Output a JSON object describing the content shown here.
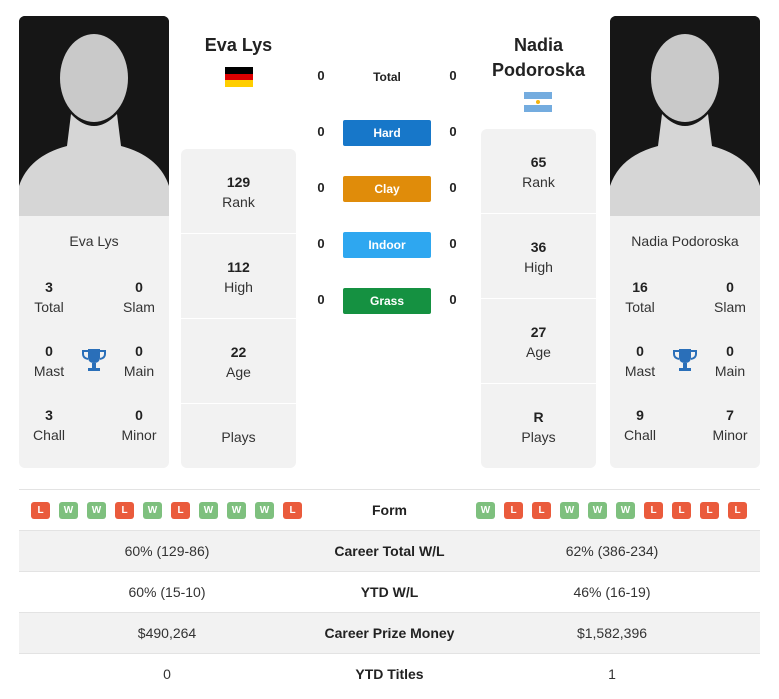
{
  "colors": {
    "hard": "#1777c9",
    "clay": "#e08c0a",
    "indoor": "#2ea7f0",
    "grass": "#159141",
    "win": "#7ec07e",
    "loss": "#ea5b3c",
    "trophy": "#2a6fb9"
  },
  "player1": {
    "name": "Eva Lys",
    "flag": "germany-flag",
    "card": {
      "name": "Eva Lys",
      "total": "3",
      "total_label": "Total",
      "slam": "0",
      "slam_label": "Slam",
      "mast": "0",
      "mast_label": "Mast",
      "main": "0",
      "main_label": "Main",
      "chall": "3",
      "chall_label": "Chall",
      "minor": "0",
      "minor_label": "Minor"
    },
    "rank": "129",
    "rank_label": "Rank",
    "high": "112",
    "high_label": "High",
    "age": "22",
    "age_label": "Age",
    "plays": "",
    "plays_label": "Plays"
  },
  "player2": {
    "name_line1": "Nadia",
    "name_line2": "Podoroska",
    "flag": "argentina-flag",
    "card": {
      "name": "Nadia Podoroska",
      "total": "16",
      "total_label": "Total",
      "slam": "0",
      "slam_label": "Slam",
      "mast": "0",
      "mast_label": "Mast",
      "main": "0",
      "main_label": "Main",
      "chall": "9",
      "chall_label": "Chall",
      "minor": "7",
      "minor_label": "Minor"
    },
    "rank": "65",
    "rank_label": "Rank",
    "high": "36",
    "high_label": "High",
    "age": "27",
    "age_label": "Age",
    "plays": "R",
    "plays_label": "Plays"
  },
  "h2h": {
    "total": {
      "label": "Total",
      "p1": "0",
      "p2": "0"
    },
    "hard": {
      "label": "Hard",
      "p1": "0",
      "p2": "0"
    },
    "clay": {
      "label": "Clay",
      "p1": "0",
      "p2": "0"
    },
    "indoor": {
      "label": "Indoor",
      "p1": "0",
      "p2": "0"
    },
    "grass": {
      "label": "Grass",
      "p1": "0",
      "p2": "0"
    }
  },
  "table": {
    "form_label": "Form",
    "p1_form": [
      "L",
      "W",
      "W",
      "L",
      "W",
      "L",
      "W",
      "W",
      "W",
      "L"
    ],
    "p2_form": [
      "W",
      "L",
      "L",
      "W",
      "W",
      "W",
      "L",
      "L",
      "L",
      "L"
    ],
    "rows": [
      {
        "label": "Career Total W/L",
        "p1": "60% (129-86)",
        "p2": "62% (386-234)"
      },
      {
        "label": "YTD W/L",
        "p1": "60% (15-10)",
        "p2": "46% (16-19)"
      },
      {
        "label": "Career Prize Money",
        "p1": "$490,264",
        "p2": "$1,582,396"
      },
      {
        "label": "YTD Titles",
        "p1": "0",
        "p2": "1"
      }
    ]
  }
}
